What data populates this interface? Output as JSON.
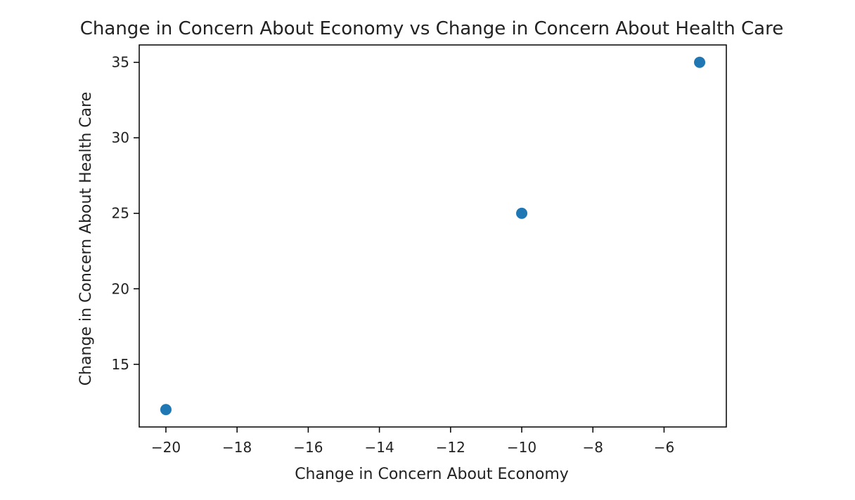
{
  "chart_data": {
    "type": "scatter",
    "title": "Change in Concern About Economy vs Change in Concern About Health Care",
    "xlabel": "Change in Concern About Economy",
    "ylabel": "Change in Concern About Health Care",
    "xlim": [
      -20.75,
      -4.25
    ],
    "ylim": [
      10.85,
      36.15
    ],
    "xticks": [
      -20,
      -18,
      -16,
      -14,
      -12,
      -10,
      -8,
      -6
    ],
    "xtick_labels": [
      "−20",
      "−18",
      "−16",
      "−14",
      "−12",
      "−10",
      "−8",
      "−6"
    ],
    "yticks": [
      15,
      20,
      25,
      30,
      35
    ],
    "ytick_labels": [
      "15",
      "20",
      "25",
      "30",
      "35"
    ],
    "grid": false,
    "series": [
      {
        "color": "#1f77b4",
        "points": [
          {
            "x": -20,
            "y": 12
          },
          {
            "x": -10,
            "y": 25
          },
          {
            "x": -5,
            "y": 35
          }
        ]
      }
    ]
  }
}
